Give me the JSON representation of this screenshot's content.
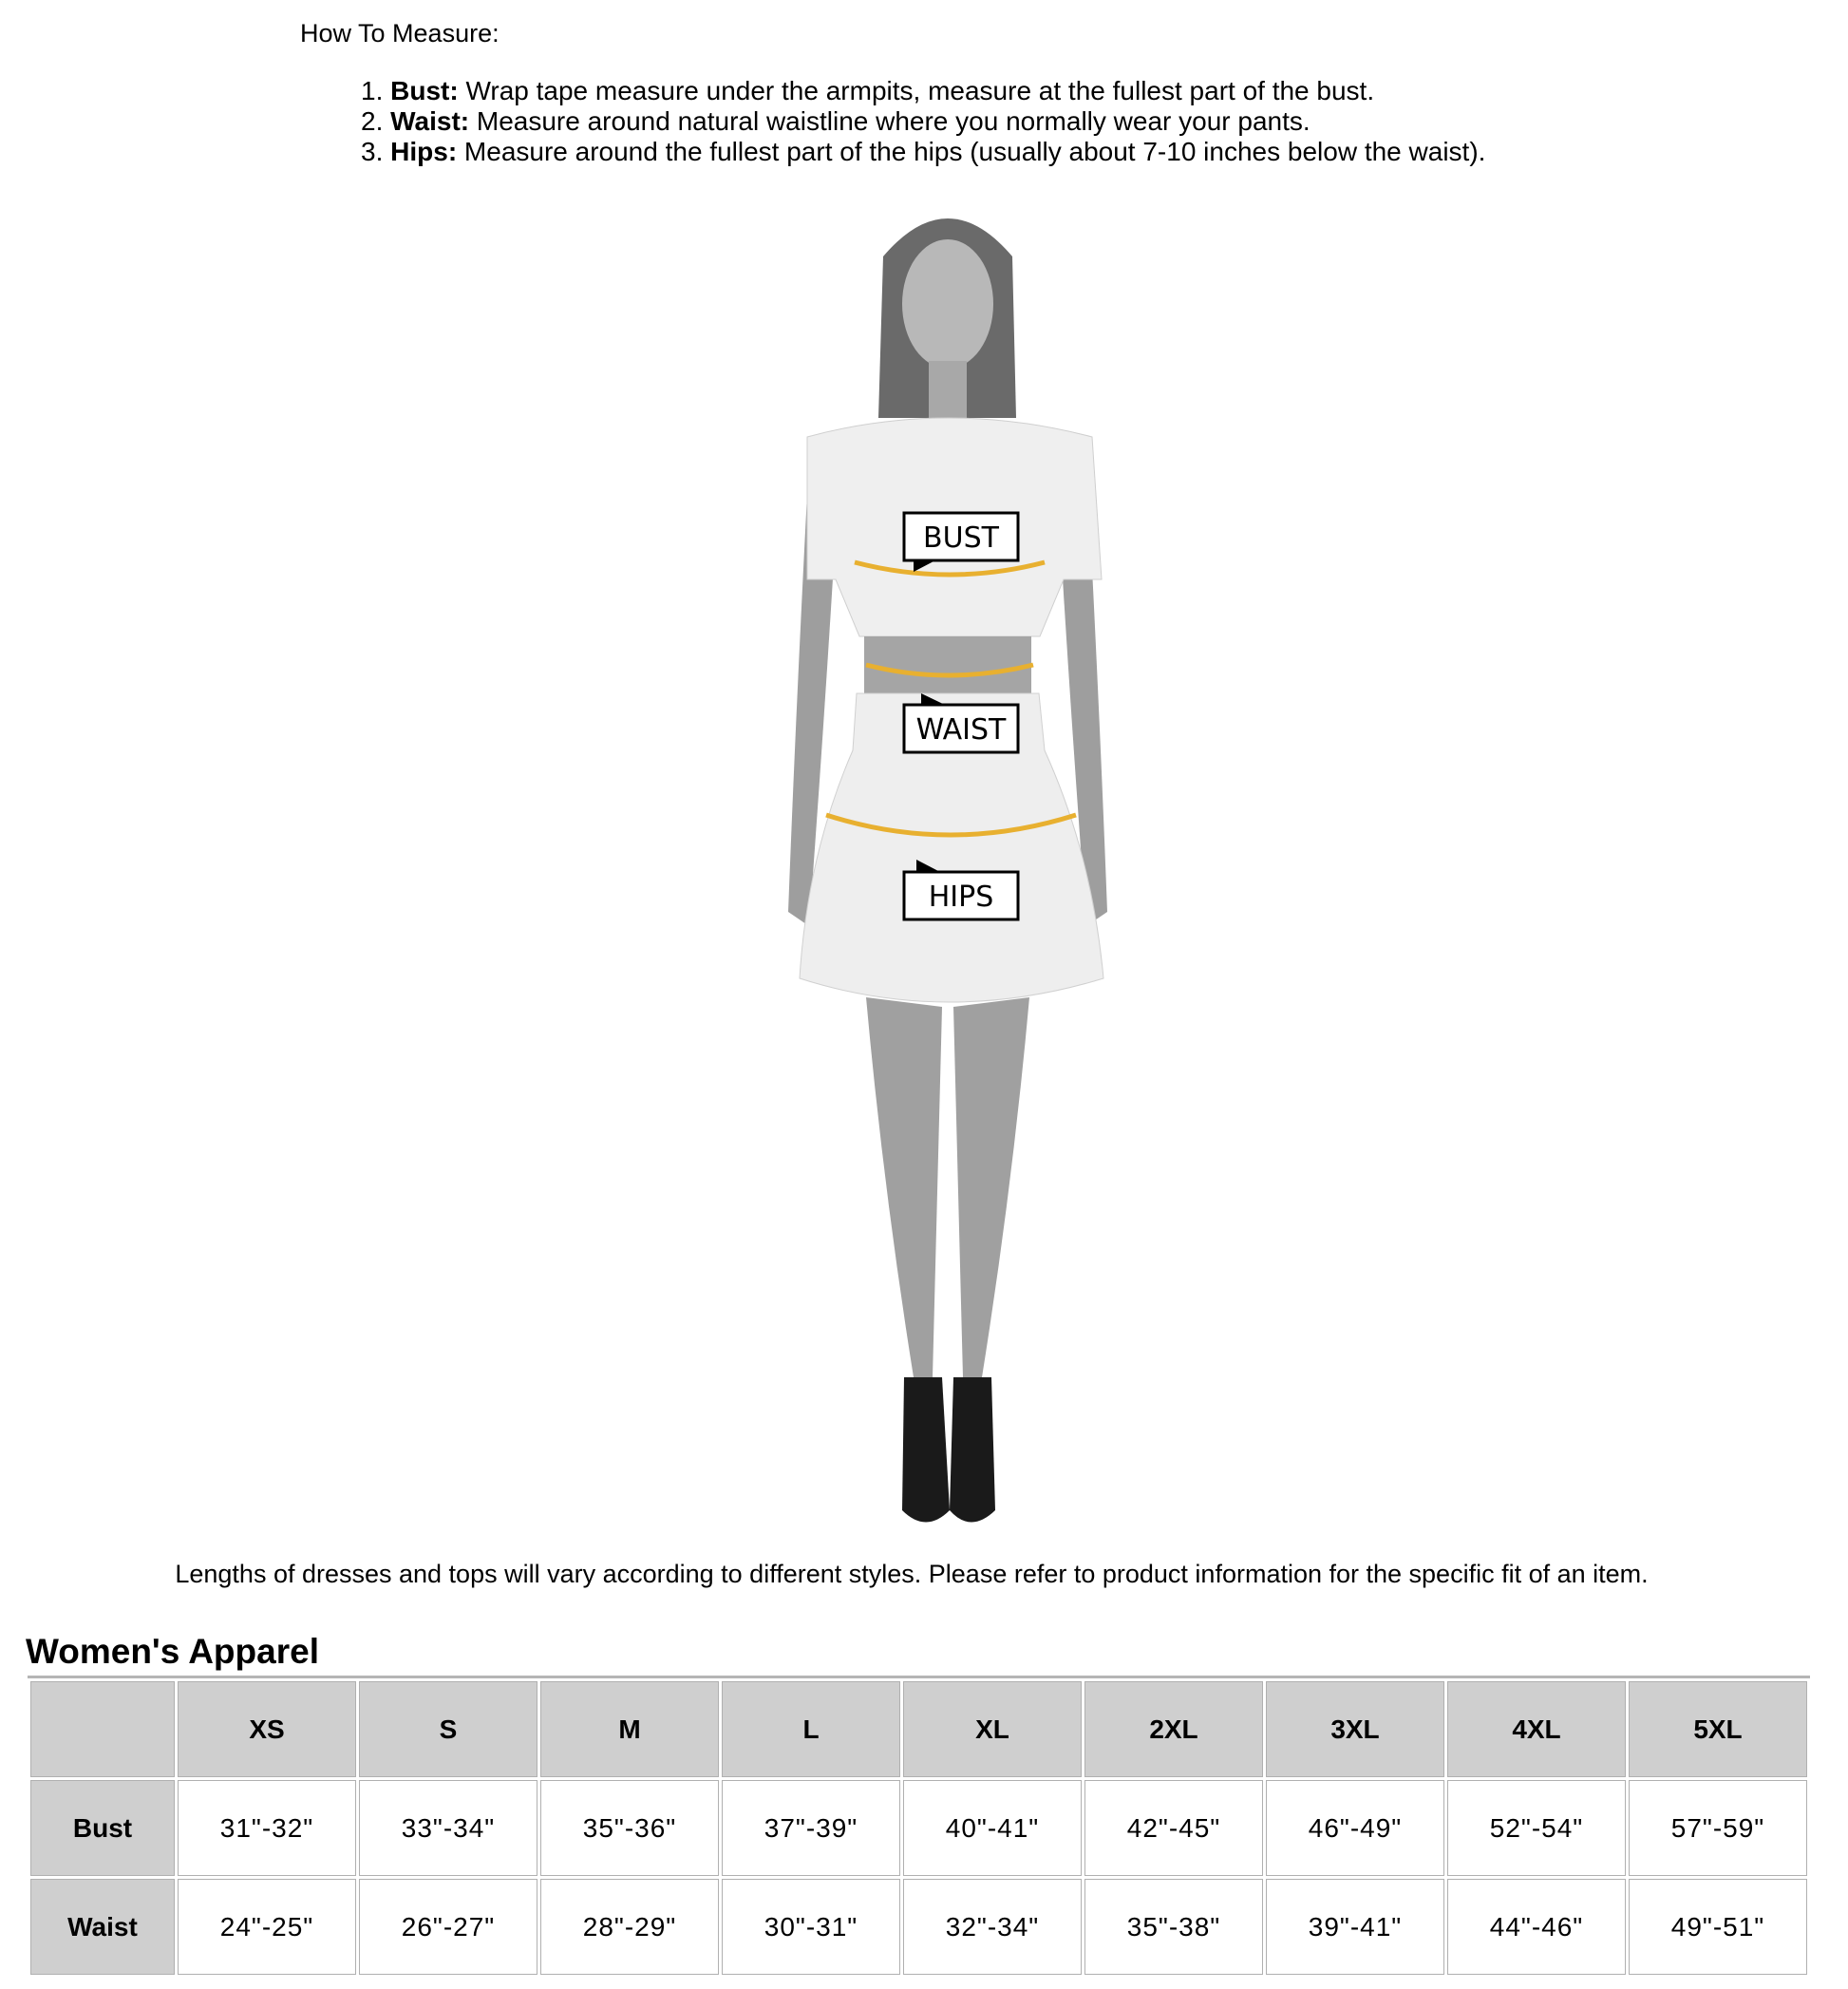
{
  "instructions": {
    "title": "How To Measure:",
    "steps": [
      {
        "num": "1.",
        "label": "Bust:",
        "text": " Wrap tape measure under the armpits, measure at the fullest part of the bust."
      },
      {
        "num": "2.",
        "label": "Waist:",
        "text": " Measure around natural waistline where you normally wear your pants."
      },
      {
        "num": "3.",
        "label": "Hips:",
        "text": " Measure around the fullest part of the hips (usually about 7-10 inches below the waist)."
      }
    ]
  },
  "figure": {
    "labels": {
      "bust": "BUST",
      "waist": "WAIST",
      "hips": "HIPS"
    },
    "tape_color": "#e8b030"
  },
  "caption": "Lengths of dresses and tops will vary according to different styles. Please refer to product information for the specific fit of an item.",
  "size_table": {
    "title": "Women's Apparel",
    "headers": [
      "",
      "XS",
      "S",
      "M",
      "L",
      "XL",
      "2XL",
      "3XL",
      "4XL",
      "5XL"
    ],
    "rows": [
      {
        "label": "Bust",
        "values": [
          "31\"-32\"",
          "33\"-34\"",
          "35\"-36\"",
          "37\"-39\"",
          "40\"-41\"",
          "42\"-45\"",
          "46\"-49\"",
          "52\"-54\"",
          "57\"-59\""
        ]
      },
      {
        "label": "Waist",
        "values": [
          "24\"-25\"",
          "26\"-27\"",
          "28\"-29\"",
          "30\"-31\"",
          "32\"-34\"",
          "35\"-38\"",
          "39\"-41\"",
          "44\"-46\"",
          "49\"-51\""
        ]
      }
    ]
  }
}
